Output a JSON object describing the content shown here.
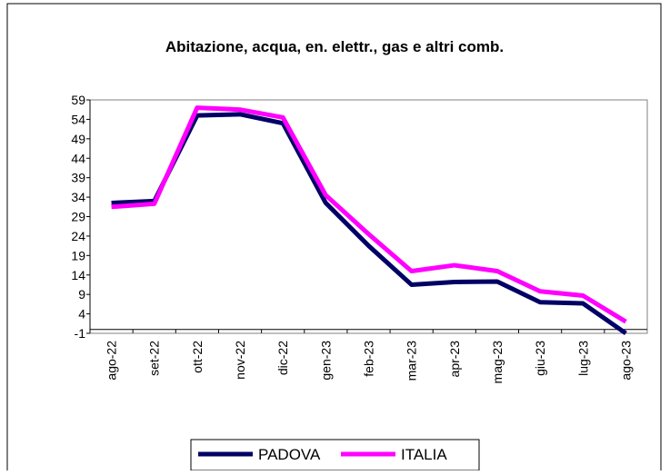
{
  "chart_data": {
    "type": "line",
    "title": "Abitazione, acqua, en. elettr., gas e altri comb.",
    "categories": [
      "ago-22",
      "set-22",
      "ott-22",
      "nov-22",
      "dic-22",
      "gen-23",
      "feb-23",
      "mar-23",
      "apr-23",
      "mag-23",
      "giu-23",
      "lug-23",
      "ago-23"
    ],
    "series": [
      {
        "name": "PADOVA",
        "color": "#000066",
        "values": [
          32.5,
          33,
          55,
          55.3,
          53,
          32.5,
          21.5,
          11.5,
          12.2,
          12.3,
          7,
          6.7,
          -1
        ]
      },
      {
        "name": "ITALIA",
        "color": "#ff00ff",
        "values": [
          31.5,
          32.3,
          57,
          56.5,
          54.5,
          34.5,
          24.5,
          15,
          16.5,
          15,
          9.8,
          8.7,
          2
        ]
      }
    ],
    "ylim": [
      -1,
      59
    ],
    "yticks": [
      -1,
      4,
      9,
      14,
      19,
      24,
      29,
      34,
      39,
      44,
      49,
      54,
      59
    ],
    "grid": false,
    "legend": "bottom"
  }
}
